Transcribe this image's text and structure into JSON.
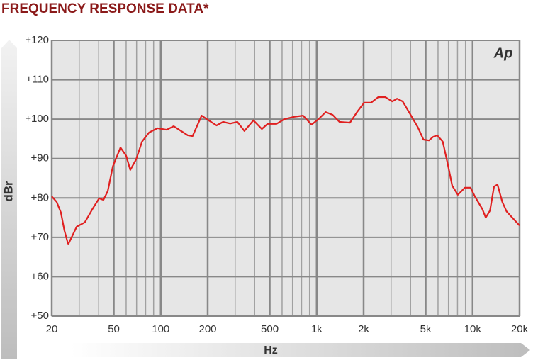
{
  "chart_data": {
    "type": "line",
    "title": "FREQUENCY RESPONSE DATA*",
    "x_label": "Hz",
    "y_label": "dBr",
    "logo": "Ap",
    "xscale": "log",
    "grid": true,
    "xlim": [
      20,
      20000
    ],
    "ylim": [
      50,
      120
    ],
    "xticks": [
      20,
      50,
      100,
      200,
      500,
      {
        "value": 1000,
        "label": "1k"
      },
      {
        "value": 2000,
        "label": "2k"
      },
      {
        "value": 5000,
        "label": "5k"
      },
      {
        "value": 10000,
        "label": "10k"
      },
      {
        "value": 20000,
        "label": "20k"
      }
    ],
    "x_minor_grid": [
      30,
      40,
      60,
      70,
      80,
      90,
      300,
      400,
      600,
      700,
      800,
      900,
      3000,
      4000,
      6000,
      7000,
      8000,
      9000
    ],
    "yticks": [
      {
        "value": 50,
        "label": "+50"
      },
      {
        "value": 60,
        "label": "+60"
      },
      {
        "value": 70,
        "label": "+70"
      },
      {
        "value": 80,
        "label": "+80"
      },
      {
        "value": 90,
        "label": "+90"
      },
      {
        "value": 100,
        "label": "+100"
      },
      {
        "value": 110,
        "label": "+110"
      },
      {
        "value": 120,
        "label": "+120"
      }
    ],
    "series": [
      {
        "color": "#e02020",
        "x": [
          20,
          21.5,
          22.9,
          24.1,
          25.5,
          26.8,
          28.9,
          32.6,
          36.5,
          40.3,
          42.9,
          45.7,
          49.3,
          55.2,
          60,
          63.8,
          69.6,
          75.9,
          84.2,
          95.3,
          109,
          121,
          135,
          149,
          160,
          183,
          203,
          228,
          251,
          279,
          310,
          344,
          393,
          445,
          484,
          552,
          621,
          716,
          818,
          927,
          1027,
          1143,
          1265,
          1400,
          1634,
          1814,
          2016,
          2236,
          2481,
          2753,
          3055,
          3277,
          3560,
          3950,
          4460,
          4840,
          5250,
          5585,
          5930,
          6430,
          6900,
          7400,
          8040,
          8920,
          9680,
          10400,
          11530,
          12140,
          12920,
          13720,
          14440,
          15500,
          16500,
          20000
        ],
        "values": [
          80.4,
          79,
          76.3,
          71.8,
          68.2,
          70,
          72.7,
          73.8,
          77.2,
          79.9,
          79.5,
          81.7,
          88,
          92.8,
          90.7,
          87.1,
          89.8,
          94.3,
          96.6,
          97.7,
          97.3,
          98.2,
          97,
          95.9,
          95.7,
          100.9,
          99.7,
          98.4,
          99.3,
          98.9,
          99.3,
          97,
          99.7,
          97.5,
          98.8,
          98.8,
          100,
          100.6,
          100.9,
          98.6,
          100,
          101.8,
          101.1,
          99.3,
          99.1,
          101.8,
          104.2,
          104.2,
          105.6,
          105.6,
          104.5,
          105.2,
          104.5,
          101.5,
          97.9,
          94.8,
          94.6,
          95.5,
          95.9,
          94.3,
          88.9,
          83.1,
          80.8,
          82.6,
          82.6,
          80.2,
          77.2,
          75,
          76.8,
          82.9,
          83.4,
          79,
          76.6,
          73
        ]
      }
    ]
  }
}
